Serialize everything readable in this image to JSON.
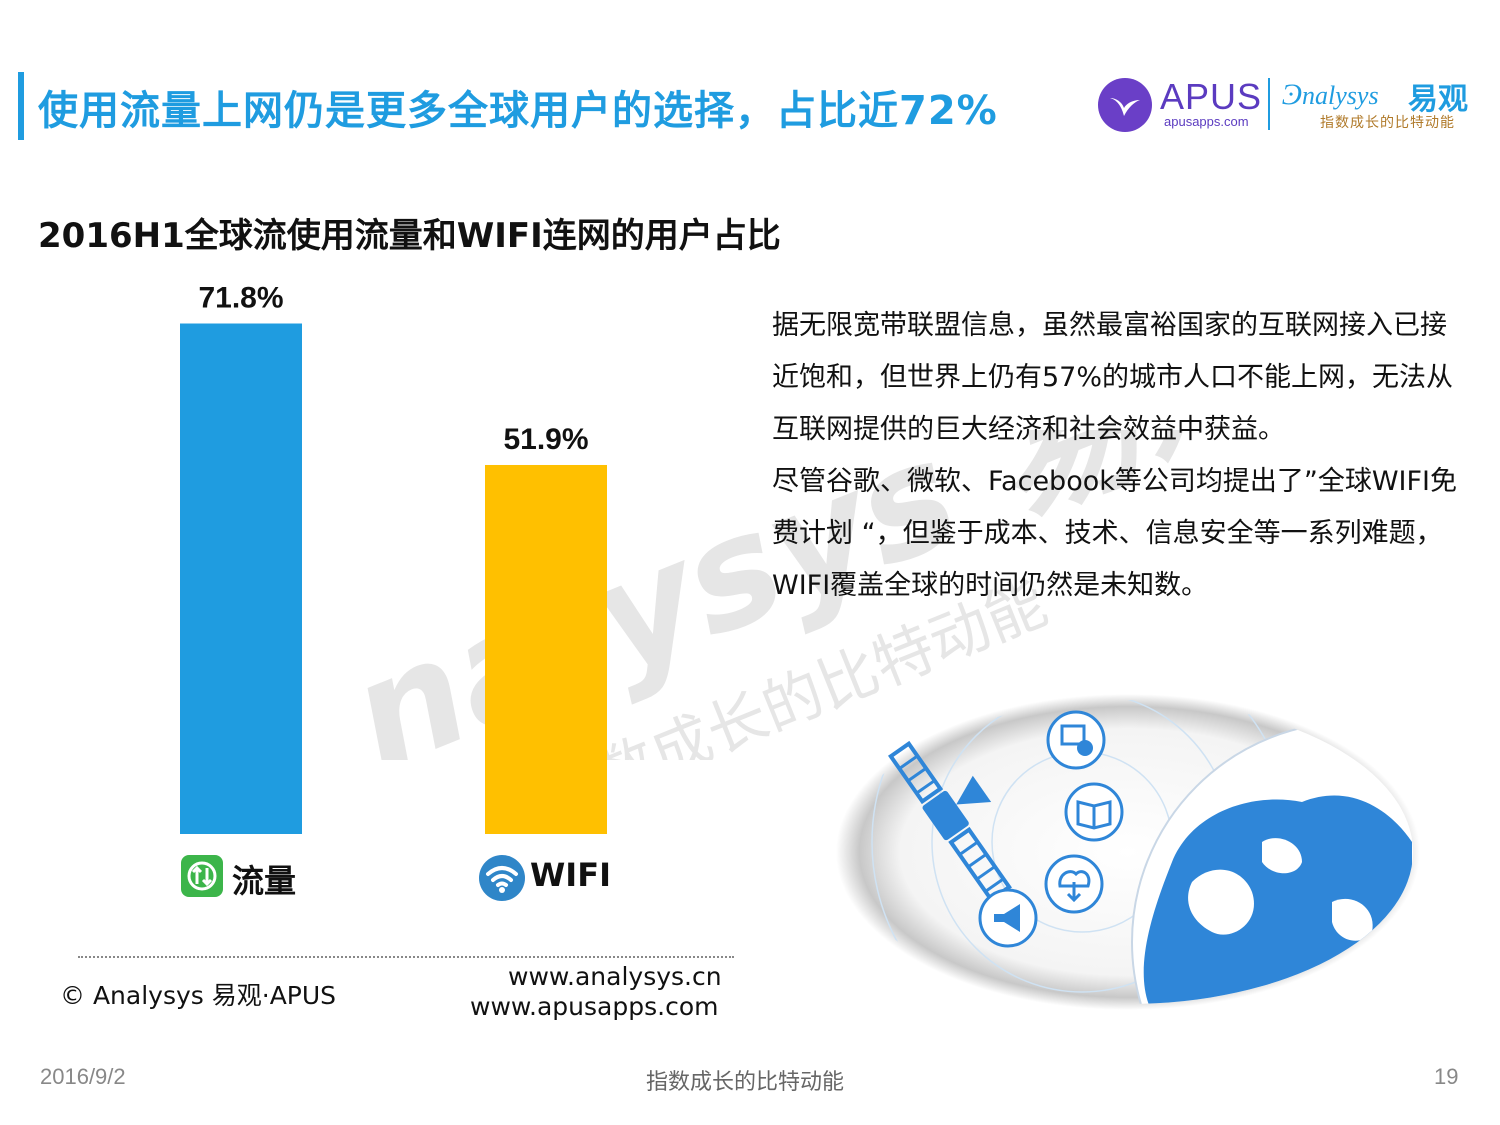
{
  "slide": {
    "title": "使用流量上网仍是更多全球用户的选择，占比近72%",
    "page_number": "19",
    "date": "2016/9/2",
    "footer_slogan": "指数成长的比特动能"
  },
  "logos": {
    "apus_name": "APUS",
    "apus_url": "apusapps.com",
    "analysys_name": "nalysys",
    "analysys_cn": "易观",
    "analysys_slogan": "指数成长的比特动能"
  },
  "watermark": {
    "text": "nalysys 易观",
    "slogan": "指数成长的比特动能"
  },
  "chart_data": {
    "type": "bar",
    "title": "2016H1全球流使用流量和WIFI连网的用户占比",
    "categories": [
      "流量",
      "WIFI"
    ],
    "values": [
      71.8,
      51.9
    ],
    "value_labels": [
      "71.8%",
      "51.9%"
    ],
    "colors": [
      "#1f9ce0",
      "#ffc000"
    ],
    "category_icons": [
      "data-arrows-icon",
      "wifi-icon"
    ],
    "ylim": [
      0,
      100
    ],
    "grid": false,
    "legend": "none"
  },
  "paragraph": [
    "据无限宽带联盟信息，虽然最富裕国家的互联网接入已接近饱和，但世界上仍有57%的城市人口不能上网，无法从互联网提供的巨大经济和社会效益中获益。",
    "尽管谷歌、微软、Facebook等公司均提出了”全球WIFI免费计划 “，但鉴于成本、技术、信息安全等一系列难题，WIFI覆盖全球的时间仍然是未知数。"
  ],
  "source": {
    "copyright": "© Analysys 易观·APUS",
    "url1": "www.analysys.cn",
    "url2": "www.apusapps.com"
  }
}
